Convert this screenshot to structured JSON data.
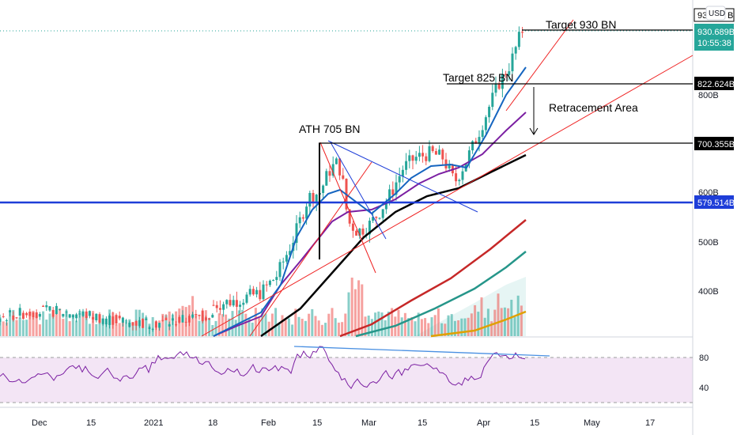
{
  "currency": "USD",
  "price_axis": {
    "ticks": [
      "400B",
      "500B",
      "600B",
      "800B"
    ],
    "price_tags": [
      {
        "label": "930.689B",
        "time": "10:55:38",
        "color": "#26a69a"
      },
      {
        "label": "822.624B",
        "color": "#000000"
      },
      {
        "label": "700.355B",
        "color": "#000000"
      },
      {
        "label": "579.514B",
        "color": "#1e3ed8"
      }
    ],
    "top_tag_partial": "93",
    "top_tag_suffix": "B"
  },
  "rsi_axis": {
    "ticks": [
      "80",
      "40"
    ]
  },
  "time_axis": [
    "Dec",
    "15",
    "2021",
    "18",
    "Feb",
    "15",
    "Mar",
    "15",
    "Apr",
    "15",
    "May",
    "17"
  ],
  "annotations": {
    "target_930": "Target 930 BN",
    "target_825": "Target 825 BN",
    "retracement": "Retracement Area",
    "ath": "ATH 705 BN"
  },
  "colors": {
    "up": "#26a69a",
    "down": "#ef5350",
    "support": "#1e3ed8",
    "rsi": "#7b1fa2",
    "rsi_band": "#f3e5f5",
    "ma_black": "#000000",
    "ma_red": "#c62828",
    "ma_teal": "#26968a",
    "ma_orange": "#e0a000",
    "ma_purple": "#7b1fa2",
    "ma_blue": "#1565c0"
  },
  "chart_data": {
    "type": "candlestick",
    "unit": "B",
    "y_ticks": [
      400,
      500,
      600,
      800
    ],
    "horizontal_levels": [
      930.689,
      822.624,
      700.355,
      579.514
    ],
    "candles": [
      {
        "date": "2021-02-05",
        "o": 455,
        "h": 470,
        "l": 450,
        "c": 465
      },
      {
        "date": "2021-02-08",
        "o": 465,
        "h": 540,
        "l": 462,
        "c": 535
      },
      {
        "date": "2021-02-10",
        "o": 545,
        "h": 600,
        "l": 540,
        "c": 590
      },
      {
        "date": "2021-02-16",
        "o": 600,
        "h": 650,
        "l": 590,
        "c": 640
      },
      {
        "date": "2021-02-21",
        "o": 650,
        "h": 705,
        "l": 630,
        "c": 640
      },
      {
        "date": "2021-02-23",
        "o": 640,
        "h": 645,
        "l": 500,
        "c": 560
      },
      {
        "date": "2021-02-28",
        "o": 540,
        "h": 560,
        "l": 510,
        "c": 540
      },
      {
        "date": "2021-03-10",
        "o": 600,
        "h": 680,
        "l": 595,
        "c": 670
      },
      {
        "date": "2021-03-25",
        "o": 660,
        "h": 670,
        "l": 610,
        "c": 630
      },
      {
        "date": "2021-04-01",
        "o": 650,
        "h": 720,
        "l": 645,
        "c": 710
      },
      {
        "date": "2021-04-06",
        "o": 760,
        "h": 830,
        "l": 750,
        "c": 820
      },
      {
        "date": "2021-04-11",
        "o": 860,
        "h": 940,
        "l": 850,
        "c": 930
      }
    ]
  }
}
